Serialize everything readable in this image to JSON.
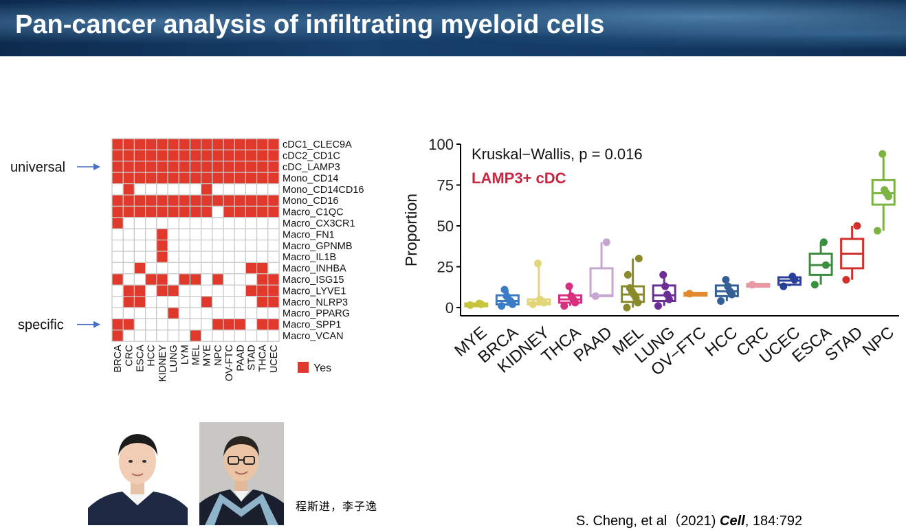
{
  "slide": {
    "title": "Pan-cancer analysis of infiltrating myeloid cells",
    "authors_text": "程斯进，李子逸",
    "citation_prefix": "S. Cheng, et al（2021) ",
    "citation_journal": "Cell",
    "citation_suffix": ", 184:792"
  },
  "heatmap": {
    "rows": [
      "cDC1_CLEC9A",
      "cDC2_CD1C",
      "cDC_LAMP3",
      "Mono_CD14",
      "Mono_CD14CD16",
      "Mono_CD16",
      "Macro_C1QC",
      "Macro_CX3CR1",
      "Macro_FN1",
      "Macro_GPNMB",
      "Macro_IL1B",
      "Macro_INHBA",
      "Macro_ISG15",
      "Macro_LYVE1",
      "Macro_NLRP3",
      "Macro_PPARG",
      "Macro_SPP1",
      "Macro_VCAN"
    ],
    "cols": [
      "BRCA",
      "CRC",
      "ESCA",
      "HCC",
      "KIDNEY",
      "LUNG",
      "LYM",
      "MEL",
      "MYE",
      "NPC",
      "OV-FTC",
      "PAAD",
      "STAD",
      "THCA",
      "UCEC"
    ],
    "matrix": [
      [
        1,
        1,
        1,
        1,
        1,
        1,
        1,
        1,
        1,
        1,
        1,
        1,
        1,
        1,
        1
      ],
      [
        1,
        1,
        1,
        1,
        1,
        1,
        1,
        1,
        1,
        1,
        1,
        1,
        1,
        1,
        1
      ],
      [
        1,
        1,
        1,
        1,
        1,
        1,
        1,
        1,
        1,
        1,
        1,
        1,
        1,
        1,
        1
      ],
      [
        1,
        1,
        1,
        1,
        1,
        1,
        1,
        1,
        1,
        1,
        1,
        1,
        1,
        1,
        1
      ],
      [
        0,
        1,
        0,
        0,
        0,
        0,
        0,
        0,
        1,
        0,
        0,
        0,
        0,
        0,
        0
      ],
      [
        1,
        1,
        1,
        1,
        1,
        1,
        1,
        1,
        1,
        1,
        1,
        1,
        1,
        1,
        1
      ],
      [
        1,
        1,
        1,
        1,
        1,
        1,
        1,
        1,
        1,
        0,
        1,
        1,
        1,
        1,
        1
      ],
      [
        1,
        0,
        0,
        0,
        0,
        0,
        0,
        0,
        0,
        0,
        0,
        0,
        0,
        0,
        0
      ],
      [
        0,
        0,
        0,
        0,
        1,
        0,
        0,
        0,
        0,
        0,
        0,
        0,
        0,
        0,
        0
      ],
      [
        0,
        0,
        0,
        0,
        1,
        0,
        0,
        0,
        0,
        0,
        0,
        0,
        0,
        0,
        0
      ],
      [
        0,
        0,
        0,
        0,
        1,
        0,
        0,
        0,
        0,
        0,
        0,
        0,
        0,
        0,
        0
      ],
      [
        0,
        0,
        1,
        0,
        0,
        0,
        0,
        0,
        0,
        0,
        0,
        0,
        1,
        1,
        0
      ],
      [
        1,
        0,
        0,
        1,
        1,
        0,
        1,
        1,
        0,
        1,
        0,
        0,
        0,
        1,
        1
      ],
      [
        0,
        1,
        1,
        0,
        1,
        1,
        0,
        0,
        0,
        0,
        0,
        0,
        1,
        1,
        1
      ],
      [
        0,
        1,
        1,
        0,
        0,
        0,
        0,
        0,
        1,
        0,
        0,
        0,
        0,
        1,
        1
      ],
      [
        0,
        0,
        0,
        0,
        0,
        1,
        0,
        0,
        0,
        0,
        0,
        0,
        0,
        0,
        0
      ],
      [
        1,
        1,
        0,
        0,
        0,
        0,
        0,
        0,
        0,
        1,
        1,
        1,
        0,
        1,
        1
      ],
      [
        1,
        0,
        0,
        0,
        0,
        0,
        0,
        1,
        0,
        0,
        0,
        0,
        0,
        0,
        0
      ]
    ],
    "fill_color": "#e0382b",
    "legend_label": "Yes",
    "annotations": [
      {
        "text": "universal",
        "row": 2
      },
      {
        "text": "specific",
        "row": 16
      }
    ]
  },
  "chart_data": {
    "type": "box",
    "title": "",
    "ylabel": "Proportion",
    "ylim": [
      0,
      100
    ],
    "yticks": [
      0,
      25,
      50,
      75,
      100
    ],
    "stat_text": "Kruskal−Wallis, p = 0.016",
    "subtitle": "LAMP3+ cDC",
    "subtitle_color": "#c8253f",
    "categories": [
      "MYE",
      "BRCA",
      "KIDNEY",
      "THCA",
      "PAAD",
      "MEL",
      "LUNG",
      "OV−FTC",
      "HCC",
      "CRC",
      "UCEC",
      "ESCA",
      "STAD",
      "NPC"
    ],
    "series": [
      {
        "category": "MYE",
        "color": "#c8c53a",
        "q1": 1.5,
        "median": 2,
        "q3": 2.5,
        "min": 1,
        "max": 3,
        "points": [
          1.5,
          2,
          2.5
        ]
      },
      {
        "category": "BRCA",
        "color": "#3a7cc6",
        "q1": 2,
        "median": 4,
        "q3": 7.5,
        "min": 1,
        "max": 11,
        "points": [
          1,
          2,
          4,
          5,
          7,
          11
        ]
      },
      {
        "category": "KIDNEY",
        "color": "#e3d57a",
        "q1": 2,
        "median": 3,
        "q3": 5,
        "min": 1,
        "max": 27,
        "points": [
          2,
          3,
          4,
          5,
          27
        ]
      },
      {
        "category": "THCA",
        "color": "#d6307f",
        "q1": 3,
        "median": 5,
        "q3": 7.5,
        "min": 1,
        "max": 13,
        "points": [
          1,
          3,
          5,
          7,
          13
        ]
      },
      {
        "category": "PAAD",
        "color": "#c4a6d0",
        "q1": 7,
        "median": 7.5,
        "q3": 24,
        "min": 7,
        "max": 40,
        "points": [
          7,
          40
        ]
      },
      {
        "category": "MEL",
        "color": "#8a8a2a",
        "q1": 3.5,
        "median": 8,
        "q3": 13,
        "min": 0,
        "max": 30,
        "points": [
          0,
          3,
          6,
          8,
          10,
          12,
          20,
          30
        ]
      },
      {
        "category": "LUNG",
        "color": "#6b2d96",
        "q1": 4,
        "median": 7.5,
        "q3": 13.5,
        "min": 1,
        "max": 20,
        "points": [
          1,
          5,
          8,
          13,
          20
        ]
      },
      {
        "category": "OV−FTC",
        "color": "#e08a2b",
        "q1": 8,
        "median": 8.5,
        "q3": 9,
        "min": 8,
        "max": 9,
        "points": [
          8.5
        ]
      },
      {
        "category": "HCC",
        "color": "#345f96",
        "q1": 7,
        "median": 10,
        "q3": 13.5,
        "min": 4,
        "max": 17,
        "points": [
          4,
          8,
          10,
          13,
          17
        ]
      },
      {
        "category": "CRC",
        "color": "#e89aa4",
        "q1": 13.5,
        "median": 14,
        "q3": 14.5,
        "min": 13,
        "max": 15,
        "points": [
          14
        ]
      },
      {
        "category": "UCEC",
        "color": "#2a3f9a",
        "q1": 14,
        "median": 16.5,
        "q3": 18.5,
        "min": 13,
        "max": 19,
        "points": [
          13,
          17,
          19
        ]
      },
      {
        "category": "ESCA",
        "color": "#3a8f3e",
        "q1": 20,
        "median": 26,
        "q3": 33,
        "min": 14,
        "max": 40,
        "points": [
          14,
          26,
          40
        ]
      },
      {
        "category": "STAD",
        "color": "#d2302c",
        "q1": 24,
        "median": 33,
        "q3": 42,
        "min": 17,
        "max": 50,
        "points": [
          17,
          50
        ]
      },
      {
        "category": "NPC",
        "color": "#7cb342",
        "q1": 63,
        "median": 70,
        "q3": 78,
        "min": 47,
        "max": 94,
        "points": [
          47,
          68,
          70,
          72,
          94
        ]
      }
    ]
  }
}
